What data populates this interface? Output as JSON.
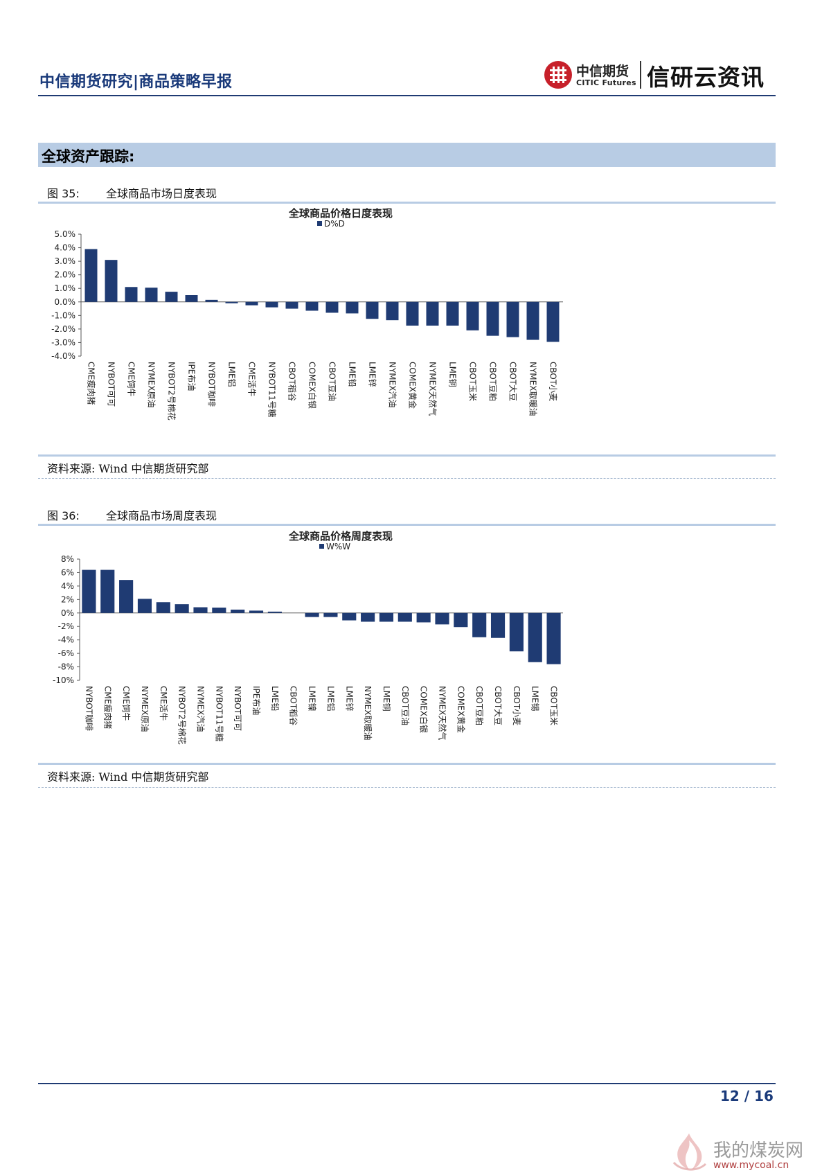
{
  "header": {
    "title": "中信期货研究|商品策略早报",
    "logo_cn": "中信期货",
    "logo_en": "CITIC Futures",
    "brand": "信研云资讯"
  },
  "section": {
    "title": "全球资产跟踪:"
  },
  "figures": [
    {
      "num": "图 35:",
      "caption": "全球商品市场日度表现",
      "source": "资料来源: Wind  中信期货研究部"
    },
    {
      "num": "图 36:",
      "caption": "全球商品市场周度表现",
      "source": "资料来源: Wind  中信期货研究部"
    }
  ],
  "footer": {
    "page": "12 / 16"
  },
  "watermark": {
    "name": "我的煤炭网",
    "url": "www.mycoal.cn"
  },
  "colors": {
    "bar": "#1f3b73",
    "accent": "#1a3a7a",
    "section_bg": "#b8cce4",
    "logo_red": "#c7202a"
  },
  "chart_data": [
    {
      "type": "bar",
      "title": "全球商品价格日度表现",
      "legend": "D%D",
      "ylim": [
        -4.0,
        5.0
      ],
      "yticks": [
        "5.0%",
        "4.0%",
        "3.0%",
        "2.0%",
        "1.0%",
        "0.0%",
        "-1.0%",
        "-2.0%",
        "-3.0%",
        "-4.0%"
      ],
      "categories": [
        "CME瘦肉猪",
        "NYBOT可可",
        "CME饲牛",
        "NYMEX原油",
        "NYBOT2号棉花",
        "IPE布油",
        "NYBOT咖啡",
        "LME铝",
        "CME活牛",
        "NYBOT11号糖",
        "CBOT稻谷",
        "COMEX白银",
        "CBOT豆油",
        "LME铅",
        "LME锌",
        "NYMEX汽油",
        "COMEX黄金",
        "NYMEX天然气",
        "LME铜",
        "CBOT玉米",
        "CBOT豆粕",
        "CBOT大豆",
        "NYMEX取暖油",
        "CBOT小麦"
      ],
      "values": [
        3.9,
        3.1,
        1.1,
        1.05,
        0.75,
        0.5,
        0.15,
        -0.1,
        -0.25,
        -0.4,
        -0.5,
        -0.65,
        -0.8,
        -0.85,
        -1.25,
        -1.35,
        -1.75,
        -1.75,
        -1.75,
        -2.1,
        -2.5,
        -2.6,
        -2.8,
        -2.95
      ]
    },
    {
      "type": "bar",
      "title": "全球商品价格周度表现",
      "legend": "W%W",
      "ylim": [
        -10,
        8
      ],
      "yticks": [
        "8%",
        "6%",
        "4%",
        "2%",
        "0%",
        "-2%",
        "-4%",
        "-6%",
        "-8%",
        "-10%"
      ],
      "categories": [
        "NYBOT咖啡",
        "CME瘦肉猪",
        "CME饲牛",
        "NYMEX原油",
        "CME活牛",
        "NYBOT2号棉花",
        "NYMEX汽油",
        "NYBOT11号糖",
        "NYBOT可可",
        "IPE布油",
        "LME铅",
        "CBOT稻谷",
        "LME镍",
        "LME铝",
        "LME锌",
        "NYMEX取暖油",
        "LME铜",
        "CBOT豆油",
        "COMEX白银",
        "NYMEX天然气",
        "COMEX黄金",
        "CBOT豆粕",
        "CBOT大豆",
        "CBOT小麦",
        "LME锡",
        "CBOT玉米"
      ],
      "values": [
        6.4,
        6.4,
        4.9,
        2.1,
        1.6,
        1.3,
        0.85,
        0.8,
        0.5,
        0.35,
        0.2,
        0.0,
        -0.6,
        -0.6,
        -1.1,
        -1.3,
        -1.3,
        -1.3,
        -1.4,
        -1.7,
        -2.1,
        -3.6,
        -3.7,
        -5.7,
        -7.3,
        -7.6
      ]
    }
  ]
}
